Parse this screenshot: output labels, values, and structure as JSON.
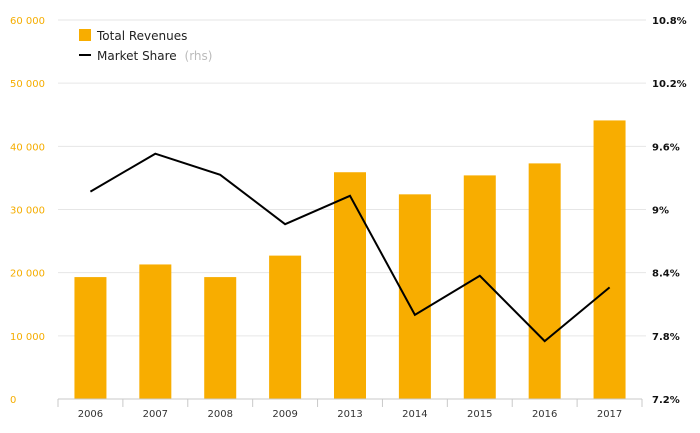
{
  "chart_data": {
    "type": "bar",
    "categories": [
      "2006",
      "2007",
      "2008",
      "2009",
      "2013",
      "2014",
      "2015",
      "2016",
      "2017"
    ],
    "series": [
      {
        "name": "Total Revenues",
        "type": "bar",
        "axis": "left",
        "color": "#f8ad00",
        "values": [
          19300,
          21300,
          19300,
          22700,
          35900,
          32400,
          35400,
          37300,
          44100
        ]
      },
      {
        "name": "Market Share",
        "name_suffix": "(rhs)",
        "type": "line",
        "axis": "right",
        "color": "#000000",
        "values": [
          9.17,
          9.53,
          9.33,
          8.86,
          9.13,
          8.0,
          8.37,
          7.75,
          8.26
        ]
      }
    ],
    "left_axis": {
      "ylim": [
        0,
        60000
      ],
      "ticks": [
        0,
        10000,
        20000,
        30000,
        40000,
        50000,
        60000
      ],
      "tick_labels": [
        "0",
        "10 000",
        "20 000",
        "30 000",
        "40 000",
        "50 000",
        "60 000"
      ],
      "color": "#f5ad00"
    },
    "right_axis": {
      "ylim": [
        7.2,
        10.8
      ],
      "ticks": [
        7.2,
        7.8,
        8.4,
        9.0,
        9.6,
        10.2,
        10.8
      ],
      "tick_labels": [
        "7.2%",
        "7.8%",
        "8.4%",
        "9%",
        "9.6%",
        "10.2%",
        "10.8%"
      ],
      "color": "#111111"
    },
    "grid": true,
    "legend_position": "top-left",
    "title": "",
    "xlabel": "",
    "ylabel": ""
  }
}
